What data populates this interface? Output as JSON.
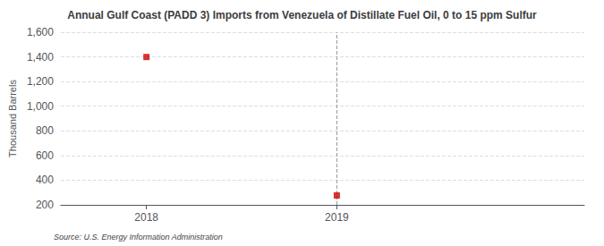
{
  "chart_data": {
    "type": "scatter",
    "title": "Annual Gulf Coast (PADD 3) Imports from Venezuela of Distillate Fuel Oil, 0 to 15 ppm Sulfur",
    "ylabel": "Thousand Barrels",
    "source": "Source: U.S. Energy Information Administration",
    "x": [
      2018,
      2019
    ],
    "values": [
      1399,
      276
    ],
    "color": "#cc0000",
    "marker": "square",
    "vline": 2019,
    "xlim": [
      2017.55,
      2020.3
    ],
    "xticks": [
      2018,
      2019
    ],
    "ylim": [
      200,
      1600
    ],
    "yticks": [
      200,
      400,
      600,
      800,
      {
        "value": 1000,
        "label": "1,000"
      },
      {
        "value": 1200,
        "label": "1,200"
      },
      {
        "value": 1400,
        "label": "1,400"
      },
      {
        "value": 1600,
        "label": "1,600"
      }
    ],
    "grid": true
  }
}
